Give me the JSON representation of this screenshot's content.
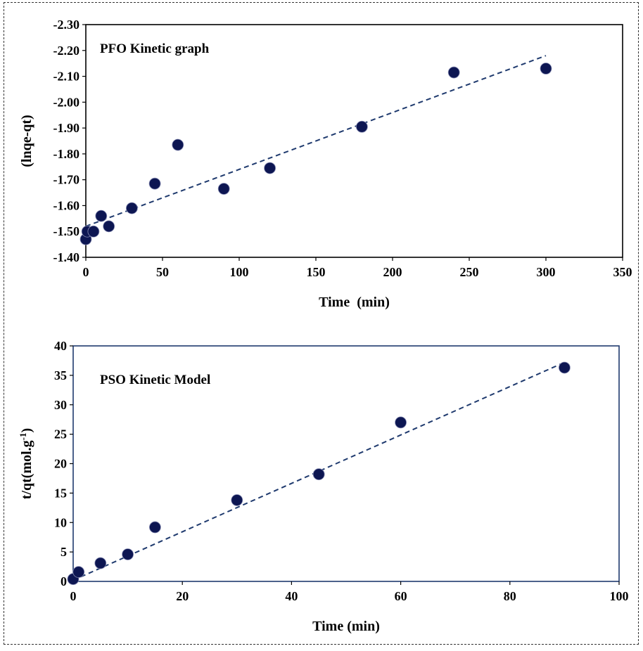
{
  "chart_data": [
    {
      "type": "scatter",
      "title": "PFO Kinetic graph",
      "xlabel": "Time  (min)",
      "ylabel": "(lnqe-qt)",
      "xlim": [
        0,
        350
      ],
      "ylim": [
        -1.4,
        -2.3
      ],
      "x_ticks": [
        "0",
        "50",
        "100",
        "150",
        "200",
        "250",
        "300",
        "350"
      ],
      "y_ticks": [
        "-1.40",
        "-1.50",
        "-1.60",
        "-1.70",
        "-1.80",
        "-1.90",
        "-2.00",
        "-2.10",
        "-2.20",
        "-2.30"
      ],
      "grid": false,
      "legend": "none",
      "series": [
        {
          "points": [
            {
              "x": 0,
              "y": -1.47
            },
            {
              "x": 1,
              "y": -1.5
            },
            {
              "x": 5,
              "y": -1.5
            },
            {
              "x": 10,
              "y": -1.56
            },
            {
              "x": 15,
              "y": -1.52
            },
            {
              "x": 30,
              "y": -1.59
            },
            {
              "x": 45,
              "y": -1.685
            },
            {
              "x": 60,
              "y": -1.835
            },
            {
              "x": 90,
              "y": -1.665
            },
            {
              "x": 120,
              "y": -1.745
            },
            {
              "x": 180,
              "y": -1.905
            },
            {
              "x": 240,
              "y": -2.115
            },
            {
              "x": 300,
              "y": -2.13
            }
          ],
          "color": "#0d1652"
        }
      ],
      "trendline": {
        "x": [
          0,
          300
        ],
        "y": [
          -1.52,
          -2.18
        ],
        "color": "#1f3a6e",
        "style": "dashed"
      }
    },
    {
      "type": "scatter",
      "title": "PSO Kinetic Model",
      "xlabel": "Time (min)",
      "ylabel": "t/qt(mol.g",
      "ylabel_sup": "-1",
      "ylabel_end": ")",
      "xlim": [
        0,
        100
      ],
      "ylim": [
        0,
        40
      ],
      "x_ticks": [
        "0",
        "20",
        "40",
        "60",
        "80",
        "100"
      ],
      "y_ticks": [
        "0",
        "5",
        "10",
        "15",
        "20",
        "25",
        "30",
        "35",
        "40"
      ],
      "grid": false,
      "legend": "none",
      "series": [
        {
          "points": [
            {
              "x": 0,
              "y": 0.4
            },
            {
              "x": 1,
              "y": 1.6
            },
            {
              "x": 5,
              "y": 3.1
            },
            {
              "x": 10,
              "y": 4.6
            },
            {
              "x": 15,
              "y": 9.2
            },
            {
              "x": 30,
              "y": 13.8
            },
            {
              "x": 45,
              "y": 18.2
            },
            {
              "x": 60,
              "y": 27.0
            },
            {
              "x": 90,
              "y": 36.3
            }
          ],
          "color": "#0d1652"
        }
      ],
      "trendline": {
        "x": [
          0,
          90
        ],
        "y": [
          0.2,
          37.2
        ],
        "color": "#1f3a6e",
        "style": "dashed"
      }
    }
  ]
}
